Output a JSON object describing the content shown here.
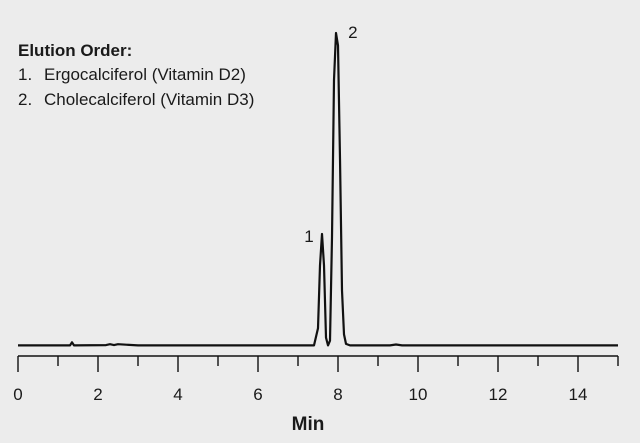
{
  "legend": {
    "title": "Elution Order:",
    "items": [
      {
        "number": "1.",
        "label": "Ergocalciferol (Vitamin D2)"
      },
      {
        "number": "2.",
        "label": "Cholecalciferol (Vitamin D3)"
      }
    ]
  },
  "chart_data": {
    "type": "line",
    "xlabel": "Min",
    "ylabel": "",
    "xlim": [
      0,
      15
    ],
    "ylim": [
      0,
      100
    ],
    "xticks": [
      0,
      2,
      4,
      6,
      8,
      10,
      12,
      14
    ],
    "x_minor_step": 1,
    "grid": false,
    "line_color": "#111111",
    "series": [
      {
        "x": [
          0,
          1.3,
          1.35,
          1.4,
          2.2,
          2.3,
          2.4,
          2.5,
          3.0,
          7.4,
          7.5,
          7.55,
          7.6,
          7.65,
          7.7,
          7.75,
          7.8,
          7.85,
          7.9,
          7.95,
          8.0,
          8.05,
          8.1,
          8.15,
          8.2,
          8.3,
          8.4,
          9.3,
          9.45,
          9.6,
          15
        ],
        "y": [
          0.5,
          0.5,
          1.5,
          0.5,
          0.6,
          0.9,
          0.6,
          0.9,
          0.5,
          0.5,
          6,
          26,
          36,
          26,
          3,
          0.5,
          2,
          35,
          85,
          100,
          96,
          60,
          18,
          4,
          1,
          0.5,
          0.5,
          0.5,
          0.8,
          0.5,
          0.5
        ]
      }
    ],
    "peak_labels": [
      {
        "text": "1",
        "x": 7.6,
        "y": 36
      },
      {
        "text": "2",
        "x": 7.97,
        "y": 100
      }
    ]
  }
}
